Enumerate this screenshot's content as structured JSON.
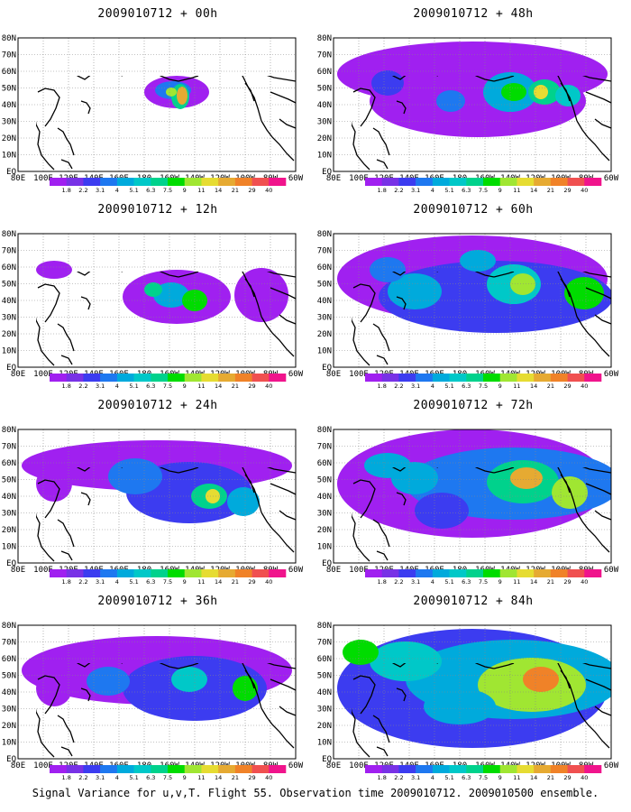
{
  "figure": {
    "caption": "Signal Variance for u,v,T. Flight 55. Observation time 2009010712. 2009010500 ensemble."
  },
  "map_axes": {
    "lat_labels": [
      "80N",
      "70N",
      "60N",
      "50N",
      "40N",
      "30N",
      "20N",
      "10N",
      "EQ"
    ],
    "lon_labels": [
      "80E",
      "100E",
      "120E",
      "140E",
      "160E",
      "180",
      "160W",
      "140W",
      "120W",
      "100W",
      "80W",
      "60W"
    ]
  },
  "colorbar": {
    "levels": [
      "1.8",
      "2.2",
      "3.1",
      "4",
      "5.1",
      "6.3",
      "7.5",
      "9",
      "11",
      "14",
      "21",
      "29",
      "40"
    ],
    "colors": [
      "#a020f0",
      "#7832e6",
      "#3c3cf0",
      "#1e78f0",
      "#00aadc",
      "#00c8c8",
      "#00d28c",
      "#00dc00",
      "#a0e632",
      "#e6dc32",
      "#e6aa32",
      "#f08228",
      "#f05050",
      "#f0148c"
    ]
  },
  "panels": [
    {
      "title": "2009010712 + 00h",
      "lead": "00h",
      "intensity": 0.35
    },
    {
      "title": "2009010712 + 48h",
      "lead": "48h",
      "intensity": 0.6
    },
    {
      "title": "2009010712 + 12h",
      "lead": "12h",
      "intensity": 0.45
    },
    {
      "title": "2009010712 + 60h",
      "lead": "60h",
      "intensity": 0.7
    },
    {
      "title": "2009010712 + 24h",
      "lead": "24h",
      "intensity": 0.55
    },
    {
      "title": "2009010712 + 72h",
      "lead": "72h",
      "intensity": 0.8
    },
    {
      "title": "2009010712 + 36h",
      "lead": "36h",
      "intensity": 0.58
    },
    {
      "title": "2009010712 + 84h",
      "lead": "84h",
      "intensity": 0.9
    }
  ]
}
